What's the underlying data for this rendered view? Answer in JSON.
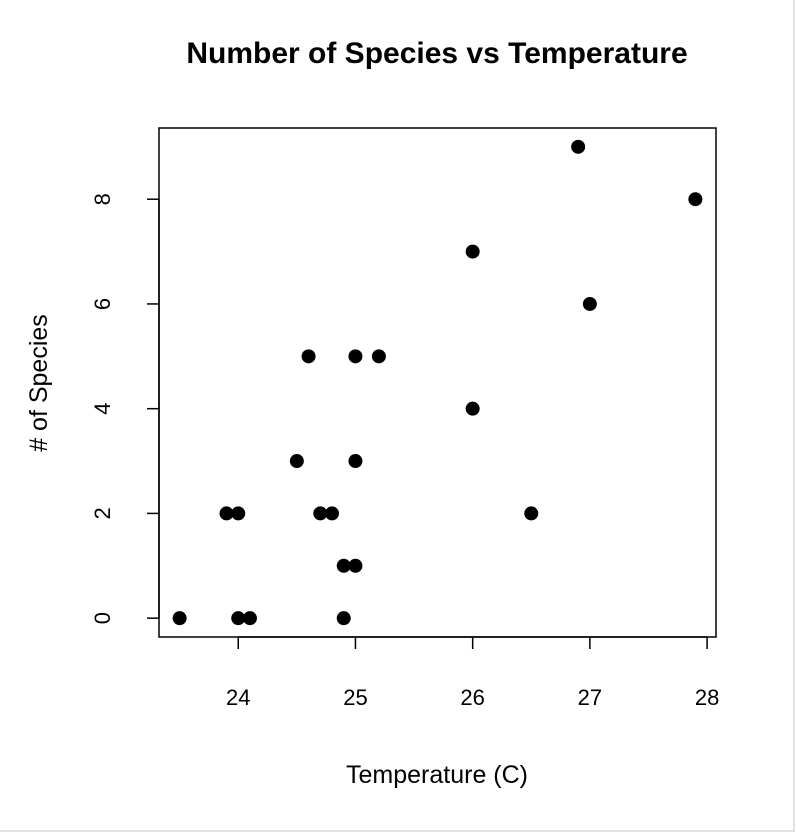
{
  "chart_data": {
    "type": "scatter",
    "title": "Number of Species vs Temperature",
    "xlabel": "Temperature (C)",
    "ylabel": "# of Species",
    "xlim": [
      23.324,
      28.076
    ],
    "ylim": [
      -0.36,
      9.36
    ],
    "xticks": [
      "24",
      "25",
      "26",
      "27",
      "28"
    ],
    "yticks": [
      "0",
      "2",
      "4",
      "6",
      "8"
    ],
    "grid": false,
    "marker_color": "#000000",
    "points": [
      {
        "x": 23.5,
        "y": 0
      },
      {
        "x": 23.9,
        "y": 2
      },
      {
        "x": 24.0,
        "y": 2
      },
      {
        "x": 24.0,
        "y": 0
      },
      {
        "x": 24.1,
        "y": 0
      },
      {
        "x": 24.5,
        "y": 3
      },
      {
        "x": 24.6,
        "y": 5
      },
      {
        "x": 24.7,
        "y": 2
      },
      {
        "x": 24.8,
        "y": 2
      },
      {
        "x": 24.9,
        "y": 1
      },
      {
        "x": 25.0,
        "y": 1
      },
      {
        "x": 24.9,
        "y": 0
      },
      {
        "x": 25.0,
        "y": 5
      },
      {
        "x": 25.2,
        "y": 5
      },
      {
        "x": 25.0,
        "y": 3
      },
      {
        "x": 26.0,
        "y": 7
      },
      {
        "x": 26.0,
        "y": 4
      },
      {
        "x": 26.5,
        "y": 2
      },
      {
        "x": 26.9,
        "y": 9
      },
      {
        "x": 27.0,
        "y": 6
      },
      {
        "x": 27.9,
        "y": 8
      }
    ]
  }
}
